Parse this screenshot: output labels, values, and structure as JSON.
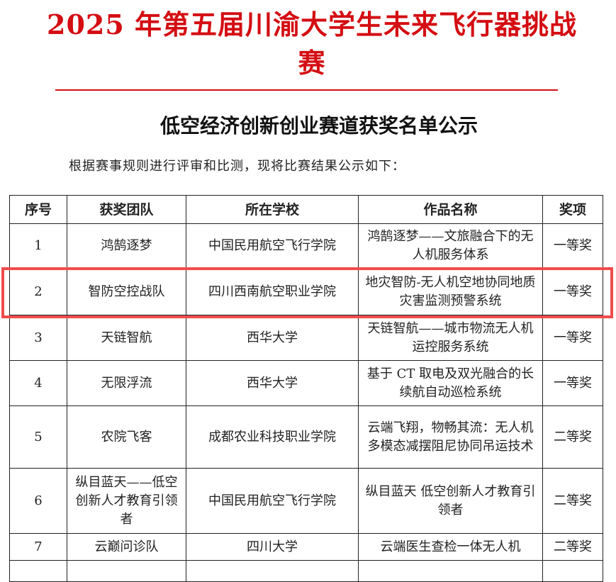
{
  "title": "2025 年第五届川渝大学生未来飞行器挑战赛",
  "subtitle": "低空经济创新创业赛道获奖名单公示",
  "intro": "根据赛事规则进行评审和比测，现将比赛结果公示如下：",
  "table": {
    "headers": [
      "序号",
      "获奖团队",
      "所在学校",
      "作品名称",
      "奖项"
    ],
    "rows": [
      {
        "no": "1",
        "team": "鸿鹄逐梦",
        "school": "中国民用航空飞行学院",
        "work": "鸿鹄逐梦——文旅融合下的无人机服务体系",
        "award": "一等奖"
      },
      {
        "no": "2",
        "team": "智防空控战队",
        "school": "四川西南航空职业学院",
        "work": "地灾智防-无人机空地协同地质灾害监测预警系统",
        "award": "一等奖"
      },
      {
        "no": "3",
        "team": "天链智航",
        "school": "西华大学",
        "work": "天链智航——城市物流无人机运控服务系统",
        "award": "一等奖"
      },
      {
        "no": "4",
        "team": "无限浮流",
        "school": "西华大学",
        "work": "基于 CT 取电及双光融合的长续航自动巡检系统",
        "award": "一等奖"
      },
      {
        "no": "5",
        "team": "农院飞客",
        "school": "成都农业科技职业学院",
        "work": "云端飞翔，物畅其流：无人机多模态减摆阻尼协同吊运技术",
        "award": "二等奖"
      },
      {
        "no": "6",
        "team": "纵目蓝天——低空创新人才教育引领者",
        "school": "中国民用航空飞行学院",
        "work": "纵目蓝天 低空创新人才教育引领者",
        "award": "二等奖"
      },
      {
        "no": "7",
        "team": "云巅问诊队",
        "school": "四川大学",
        "work": "云端医生查检一体无人机",
        "award": "二等奖"
      }
    ]
  },
  "highlight_color": "#f04c4c",
  "title_color": "#d40d12"
}
